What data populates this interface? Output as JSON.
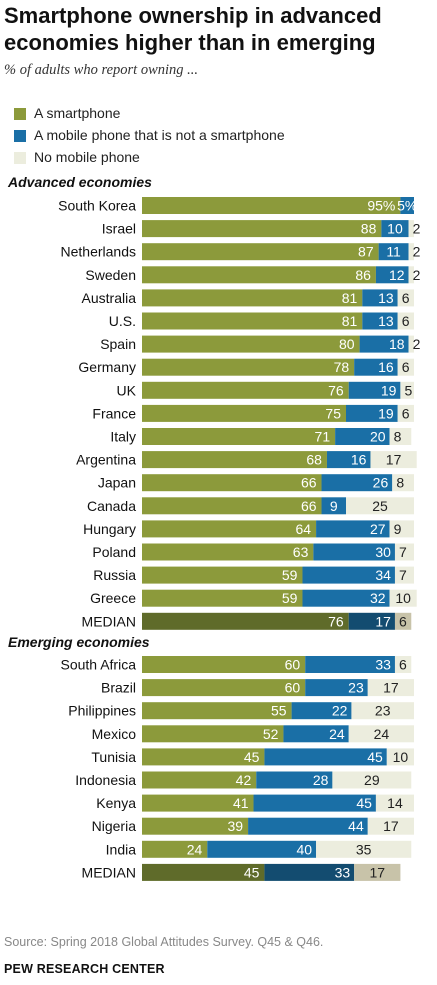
{
  "title": "Smartphone ownership in advanced economies higher than in emerging",
  "subtitle": "% of adults who report owning ...",
  "legend": [
    {
      "label": "A smartphone",
      "color": "#8c9a3b"
    },
    {
      "label": "A mobile phone that is not a smartphone",
      "color": "#1a6fa6"
    },
    {
      "label": "No mobile phone",
      "color": "#ecedde"
    }
  ],
  "median_colors": [
    "#5f6b2a",
    "#134c70",
    "#c8c3a9"
  ],
  "source": "Source: Spring 2018 Global Attitudes Survey. Q45 & Q46.",
  "footer": "PEW RESEARCH CENTER",
  "chart_data": {
    "type": "bar",
    "stacked": true,
    "orientation": "horizontal",
    "series_names": [
      "A smartphone",
      "A mobile phone that is not a smartphone",
      "No mobile phone"
    ],
    "groups": [
      {
        "label": "Advanced economies",
        "rows": [
          {
            "name": "South Korea",
            "values": [
              95,
              5,
              0
            ],
            "labels": [
              "95%",
              "5%",
              ""
            ]
          },
          {
            "name": "Israel",
            "values": [
              88,
              10,
              2
            ],
            "labels": [
              "88",
              "10",
              "2"
            ]
          },
          {
            "name": "Netherlands",
            "values": [
              87,
              11,
              2
            ],
            "labels": [
              "87",
              "11",
              "2"
            ]
          },
          {
            "name": "Sweden",
            "values": [
              86,
              12,
              2
            ],
            "labels": [
              "86",
              "12",
              "2"
            ]
          },
          {
            "name": "Australia",
            "values": [
              81,
              13,
              6
            ],
            "labels": [
              "81",
              "13",
              "6"
            ]
          },
          {
            "name": "U.S.",
            "values": [
              81,
              13,
              6
            ],
            "labels": [
              "81",
              "13",
              "6"
            ]
          },
          {
            "name": "Spain",
            "values": [
              80,
              18,
              2
            ],
            "labels": [
              "80",
              "18",
              "2"
            ]
          },
          {
            "name": "Germany",
            "values": [
              78,
              16,
              6
            ],
            "labels": [
              "78",
              "16",
              "6"
            ]
          },
          {
            "name": "UK",
            "values": [
              76,
              19,
              5
            ],
            "labels": [
              "76",
              "19",
              "5"
            ]
          },
          {
            "name": "France",
            "values": [
              75,
              19,
              6
            ],
            "labels": [
              "75",
              "19",
              "6"
            ]
          },
          {
            "name": "Italy",
            "values": [
              71,
              20,
              8
            ],
            "labels": [
              "71",
              "20",
              "8"
            ]
          },
          {
            "name": "Argentina",
            "values": [
              68,
              16,
              17
            ],
            "labels": [
              "68",
              "16",
              "17"
            ]
          },
          {
            "name": "Japan",
            "values": [
              66,
              26,
              8
            ],
            "labels": [
              "66",
              "26",
              "8"
            ]
          },
          {
            "name": "Canada",
            "values": [
              66,
              9,
              25
            ],
            "labels": [
              "66",
              "9",
              "25"
            ]
          },
          {
            "name": "Hungary",
            "values": [
              64,
              27,
              9
            ],
            "labels": [
              "64",
              "27",
              "9"
            ]
          },
          {
            "name": "Poland",
            "values": [
              63,
              30,
              7
            ],
            "labels": [
              "63",
              "30",
              "7"
            ]
          },
          {
            "name": "Russia",
            "values": [
              59,
              34,
              7
            ],
            "labels": [
              "59",
              "34",
              "7"
            ]
          },
          {
            "name": "Greece",
            "values": [
              59,
              32,
              10
            ],
            "labels": [
              "59",
              "32",
              "10"
            ]
          },
          {
            "name": "MEDIAN",
            "values": [
              76,
              17,
              6
            ],
            "labels": [
              "76",
              "17",
              "6"
            ],
            "median": true
          }
        ]
      },
      {
        "label": "Emerging economies",
        "rows": [
          {
            "name": "South Africa",
            "values": [
              60,
              33,
              6
            ],
            "labels": [
              "60",
              "33",
              "6"
            ]
          },
          {
            "name": "Brazil",
            "values": [
              60,
              23,
              17
            ],
            "labels": [
              "60",
              "23",
              "17"
            ]
          },
          {
            "name": "Philippines",
            "values": [
              55,
              22,
              23
            ],
            "labels": [
              "55",
              "22",
              "23"
            ]
          },
          {
            "name": "Mexico",
            "values": [
              52,
              24,
              24
            ],
            "labels": [
              "52",
              "24",
              "24"
            ]
          },
          {
            "name": "Tunisia",
            "values": [
              45,
              45,
              10
            ],
            "labels": [
              "45",
              "45",
              "10"
            ]
          },
          {
            "name": "Indonesia",
            "values": [
              42,
              28,
              29
            ],
            "labels": [
              "42",
              "28",
              "29"
            ]
          },
          {
            "name": "Kenya",
            "values": [
              41,
              45,
              14
            ],
            "labels": [
              "41",
              "45",
              "14"
            ]
          },
          {
            "name": "Nigeria",
            "values": [
              39,
              44,
              17
            ],
            "labels": [
              "39",
              "44",
              "17"
            ]
          },
          {
            "name": "India",
            "values": [
              24,
              40,
              35
            ],
            "labels": [
              "24",
              "40",
              "35"
            ]
          },
          {
            "name": "MEDIAN",
            "values": [
              45,
              33,
              17
            ],
            "labels": [
              "45",
              "33",
              "17"
            ],
            "median": true
          }
        ]
      }
    ]
  }
}
